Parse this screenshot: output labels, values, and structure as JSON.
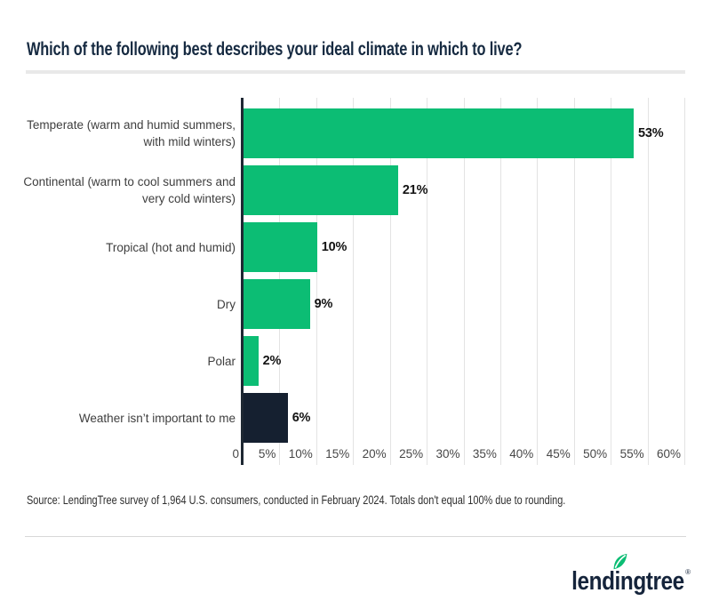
{
  "title": "Which of the following best describes your ideal climate in which to live?",
  "source_note": "Source: LendingTree survey of 1,964 U.S. consumers, conducted in February 2024. Totals don't equal 100% due to rounding.",
  "logo": {
    "brand": "lendingtree",
    "registered_mark": "®",
    "leaf_icon": "leaf-icon",
    "leaf_color": "#0cbd74",
    "text_color": "#15243b"
  },
  "colors": {
    "bar_green": "#0cbd74",
    "bar_navy": "#152030",
    "axis_line": "#1e2833",
    "gridline": "#e3e3e3",
    "title_navy": "#162a41",
    "category_label": "#3e3e3e",
    "value_label": "#131313",
    "tick_label": "#474747",
    "title_divider": "#e9e9e9",
    "footer_divider": "#d8d8d8"
  },
  "chart_data": {
    "type": "bar",
    "orientation": "horizontal",
    "title": "Which of the following best describes your ideal climate in which to live?",
    "categories": [
      "Temperate (warm and humid summers,\nwith mild winters)",
      "Continental (warm to cool summers and\nvery cold winters)",
      "Tropical (hot and humid)",
      "Dry",
      "Polar",
      "Weather isn’t important to me"
    ],
    "values": [
      53,
      21,
      10,
      9,
      2,
      6
    ],
    "data_labels": [
      "53%",
      "21%",
      "10%",
      "9%",
      "2%",
      "6%"
    ],
    "bar_colors": [
      "#0cbd74",
      "#0cbd74",
      "#0cbd74",
      "#0cbd74",
      "#0cbd74",
      "#152030"
    ],
    "xlim": [
      0,
      60
    ],
    "x_ticks": [
      {
        "value": 0,
        "label": "0"
      },
      {
        "value": 5,
        "label": "5%"
      },
      {
        "value": 10,
        "label": "10%"
      },
      {
        "value": 15,
        "label": "15%"
      },
      {
        "value": 20,
        "label": "20%"
      },
      {
        "value": 25,
        "label": "25%"
      },
      {
        "value": 30,
        "label": "30%"
      },
      {
        "value": 35,
        "label": "35%"
      },
      {
        "value": 40,
        "label": "40%"
      },
      {
        "value": 45,
        "label": "45%"
      },
      {
        "value": 50,
        "label": "50%"
      },
      {
        "value": 55,
        "label": "55%"
      },
      {
        "value": 60,
        "label": "60%"
      }
    ],
    "grid": "vertical",
    "legend": "none",
    "xlabel": "",
    "ylabel": ""
  }
}
